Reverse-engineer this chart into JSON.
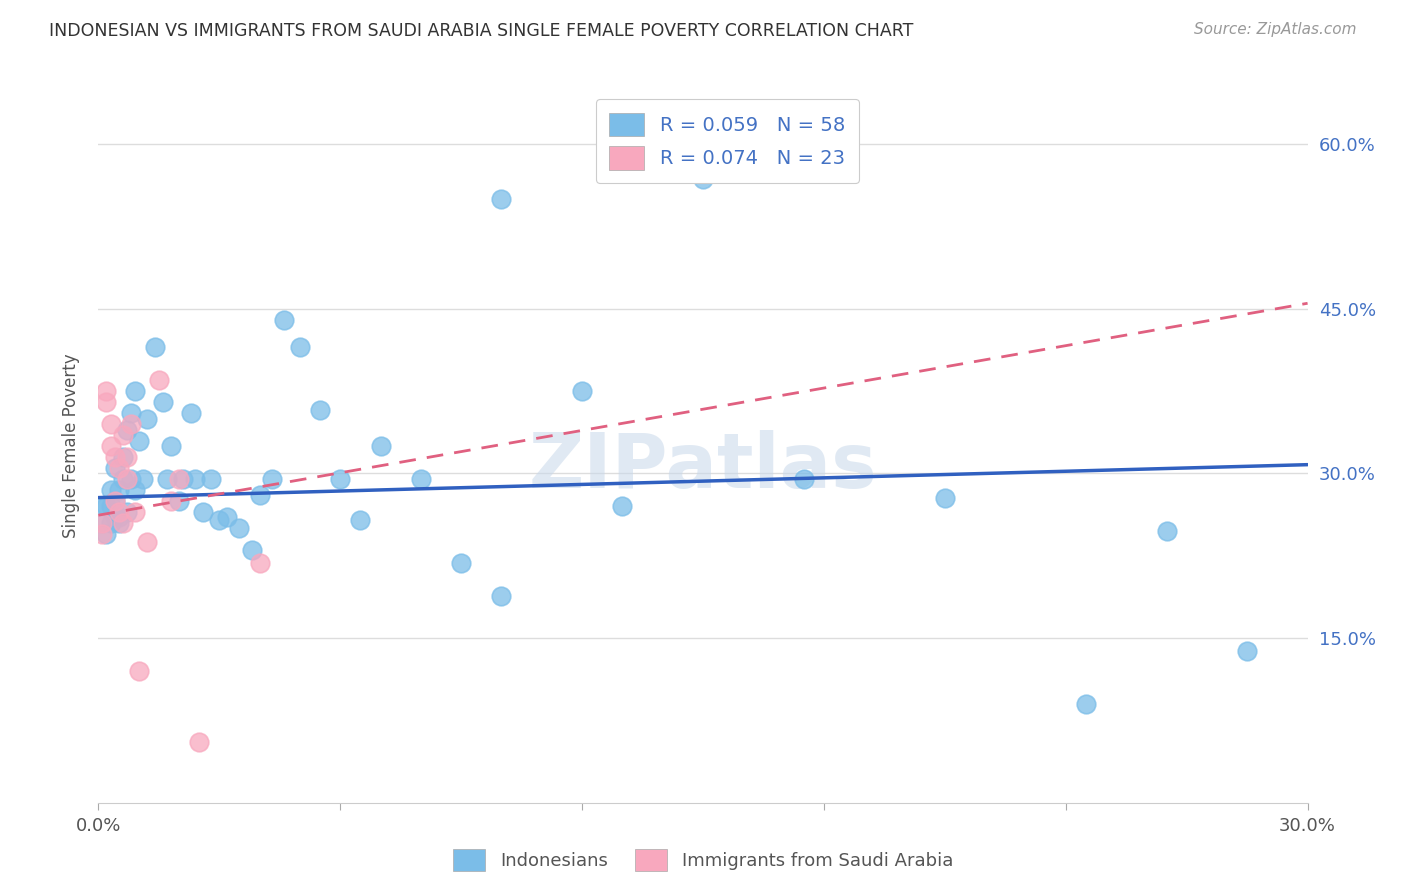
{
  "title": "INDONESIAN VS IMMIGRANTS FROM SAUDI ARABIA SINGLE FEMALE POVERTY CORRELATION CHART",
  "source": "Source: ZipAtlas.com",
  "ylabel": "Single Female Poverty",
  "xlim": [
    0.0,
    0.3
  ],
  "ylim": [
    0.0,
    0.65
  ],
  "xtick_positions": [
    0.0,
    0.06,
    0.12,
    0.18,
    0.24,
    0.3
  ],
  "xtick_labels": [
    "0.0%",
    "",
    "",
    "",
    "",
    "30.0%"
  ],
  "ytick_positions": [
    0.15,
    0.3,
    0.45,
    0.6
  ],
  "ytick_labels_right": [
    "15.0%",
    "30.0%",
    "45.0%",
    "60.0%"
  ],
  "grid_color": "#dddddd",
  "background_color": "#ffffff",
  "watermark": "ZIPatlas",
  "blue_color": "#7bbde8",
  "pink_color": "#f8a8be",
  "blue_line_color": "#3060c0",
  "pink_line_color": "#e06080",
  "blue_line_y0": 0.278,
  "blue_line_y1": 0.308,
  "pink_line_y0": 0.262,
  "pink_line_y1": 0.455,
  "indonesian_x": [
    0.001,
    0.001,
    0.002,
    0.002,
    0.003,
    0.003,
    0.003,
    0.004,
    0.004,
    0.004,
    0.005,
    0.005,
    0.005,
    0.006,
    0.006,
    0.007,
    0.007,
    0.008,
    0.008,
    0.009,
    0.009,
    0.01,
    0.011,
    0.012,
    0.014,
    0.016,
    0.017,
    0.018,
    0.02,
    0.021,
    0.023,
    0.024,
    0.026,
    0.028,
    0.03,
    0.032,
    0.035,
    0.038,
    0.04,
    0.043,
    0.046,
    0.05,
    0.06,
    0.065,
    0.07,
    0.08,
    0.09,
    0.1,
    0.12,
    0.15,
    0.175,
    0.21,
    0.245,
    0.265,
    0.285,
    0.1,
    0.13,
    0.055
  ],
  "indonesian_y": [
    0.255,
    0.27,
    0.245,
    0.27,
    0.255,
    0.27,
    0.285,
    0.26,
    0.275,
    0.305,
    0.255,
    0.285,
    0.26,
    0.295,
    0.315,
    0.34,
    0.265,
    0.355,
    0.295,
    0.375,
    0.285,
    0.33,
    0.295,
    0.35,
    0.415,
    0.365,
    0.295,
    0.325,
    0.275,
    0.295,
    0.355,
    0.295,
    0.265,
    0.295,
    0.258,
    0.26,
    0.25,
    0.23,
    0.28,
    0.295,
    0.44,
    0.415,
    0.295,
    0.258,
    0.325,
    0.295,
    0.218,
    0.188,
    0.375,
    0.568,
    0.295,
    0.278,
    0.09,
    0.248,
    0.138,
    0.55,
    0.27,
    0.358
  ],
  "saudi_x": [
    0.001,
    0.001,
    0.002,
    0.002,
    0.003,
    0.003,
    0.004,
    0.004,
    0.005,
    0.005,
    0.006,
    0.006,
    0.007,
    0.007,
    0.008,
    0.009,
    0.01,
    0.012,
    0.015,
    0.018,
    0.02,
    0.025,
    0.04
  ],
  "saudi_y": [
    0.255,
    0.245,
    0.375,
    0.365,
    0.345,
    0.325,
    0.315,
    0.275,
    0.305,
    0.265,
    0.335,
    0.255,
    0.295,
    0.315,
    0.345,
    0.265,
    0.12,
    0.238,
    0.385,
    0.275,
    0.295,
    0.055,
    0.218
  ]
}
